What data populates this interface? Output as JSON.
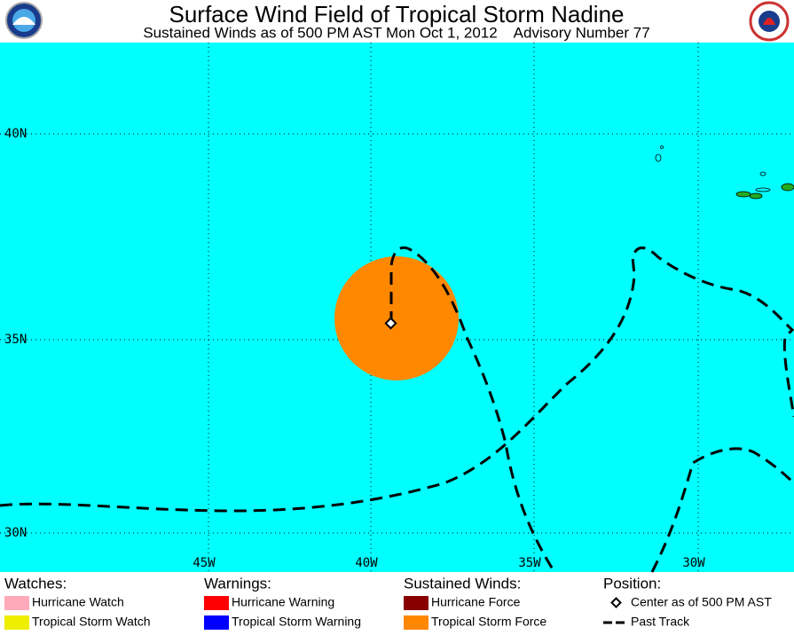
{
  "header": {
    "title": "Surface Wind Field of Tropical Storm Nadine",
    "subtitle": "Sustained Winds as of 500 PM AST Mon Oct 1, 2012    Advisory Number 77"
  },
  "map": {
    "latitude_labels": [
      "40N",
      "35N",
      "30N"
    ],
    "longitude_labels": [
      "45W",
      "40W",
      "35W",
      "30W"
    ]
  },
  "legend": {
    "groups": [
      {
        "heading": "Watches:",
        "items": [
          "Hurricane Watch",
          "Tropical Storm Watch"
        ]
      },
      {
        "heading": "Warnings:",
        "items": [
          "Hurricane Warning",
          "Tropical Storm Warning"
        ]
      },
      {
        "heading": "Sustained Winds:",
        "items": [
          "Hurricane Force",
          "Tropical Storm Force"
        ]
      },
      {
        "heading": "Position:",
        "items": [
          "Center as of 500 PM AST",
          "Past Track"
        ]
      }
    ]
  }
}
